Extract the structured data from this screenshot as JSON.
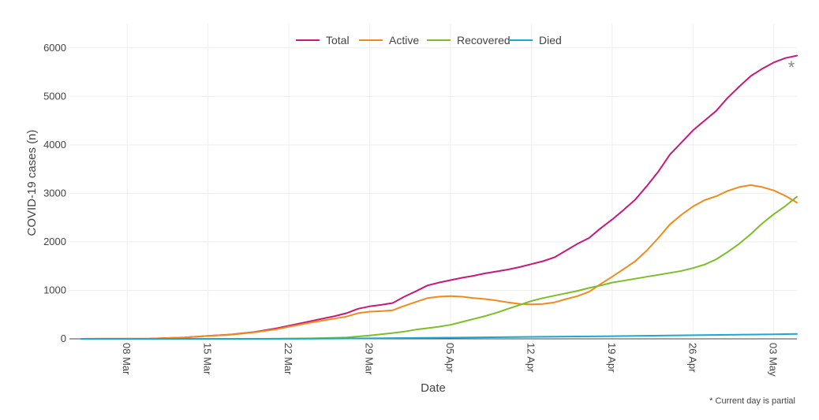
{
  "chart_data": {
    "type": "line",
    "xlabel": "Date",
    "ylabel": "COVID-19 cases (n)",
    "x_start": "2020-03-03",
    "x_end": "2020-05-05",
    "xlim": [
      "2020-03-03",
      "2020-05-05"
    ],
    "ylim": [
      0,
      6500
    ],
    "y_ticks": [
      0,
      1000,
      2000,
      3000,
      4000,
      5000,
      6000
    ],
    "x_ticks": [
      {
        "date": "2020-03-08",
        "label": "08 Mar"
      },
      {
        "date": "2020-03-15",
        "label": "15 Mar"
      },
      {
        "date": "2020-03-22",
        "label": "22 Mar"
      },
      {
        "date": "2020-03-29",
        "label": "29 Mar"
      },
      {
        "date": "2020-04-05",
        "label": "05 Apr"
      },
      {
        "date": "2020-04-12",
        "label": "12 Apr"
      },
      {
        "date": "2020-04-19",
        "label": "19 Apr"
      },
      {
        "date": "2020-04-26",
        "label": "26 Apr"
      },
      {
        "date": "2020-05-03",
        "label": "03 May"
      }
    ],
    "grid": true,
    "legend_position": "top-center",
    "series": [
      {
        "name": "Total",
        "color": "#c7197a",
        "points": [
          [
            "2020-03-04",
            0
          ],
          [
            "2020-03-10",
            5
          ],
          [
            "2020-03-13",
            30
          ],
          [
            "2020-03-15",
            60
          ],
          [
            "2020-03-17",
            90
          ],
          [
            "2020-03-19",
            140
          ],
          [
            "2020-03-21",
            220
          ],
          [
            "2020-03-22",
            270
          ],
          [
            "2020-03-24",
            370
          ],
          [
            "2020-03-26",
            470
          ],
          [
            "2020-03-27",
            530
          ],
          [
            "2020-03-28",
            620
          ],
          [
            "2020-03-29",
            670
          ],
          [
            "2020-03-30",
            700
          ],
          [
            "2020-03-31",
            740
          ],
          [
            "2020-04-01",
            870
          ],
          [
            "2020-04-02",
            980
          ],
          [
            "2020-04-03",
            1100
          ],
          [
            "2020-04-04",
            1160
          ],
          [
            "2020-04-05",
            1210
          ],
          [
            "2020-04-06",
            1260
          ],
          [
            "2020-04-07",
            1300
          ],
          [
            "2020-04-08",
            1350
          ],
          [
            "2020-04-09",
            1390
          ],
          [
            "2020-04-10",
            1430
          ],
          [
            "2020-04-11",
            1480
          ],
          [
            "2020-04-12",
            1540
          ],
          [
            "2020-04-13",
            1600
          ],
          [
            "2020-04-14",
            1680
          ],
          [
            "2020-04-15",
            1820
          ],
          [
            "2020-04-16",
            1960
          ],
          [
            "2020-04-17",
            2080
          ],
          [
            "2020-04-18",
            2280
          ],
          [
            "2020-04-19",
            2460
          ],
          [
            "2020-04-20",
            2660
          ],
          [
            "2020-04-21",
            2870
          ],
          [
            "2020-04-22",
            3150
          ],
          [
            "2020-04-23",
            3450
          ],
          [
            "2020-04-24",
            3800
          ],
          [
            "2020-04-25",
            4050
          ],
          [
            "2020-04-26",
            4300
          ],
          [
            "2020-04-27",
            4500
          ],
          [
            "2020-04-28",
            4700
          ],
          [
            "2020-04-29",
            4970
          ],
          [
            "2020-04-30",
            5200
          ],
          [
            "2020-05-01",
            5420
          ],
          [
            "2020-05-02",
            5570
          ],
          [
            "2020-05-03",
            5700
          ],
          [
            "2020-05-04",
            5790
          ],
          [
            "2020-05-05",
            5840
          ]
        ]
      },
      {
        "name": "Active",
        "color": "#f28a1b",
        "points": [
          [
            "2020-03-04",
            0
          ],
          [
            "2020-03-10",
            5
          ],
          [
            "2020-03-13",
            30
          ],
          [
            "2020-03-15",
            60
          ],
          [
            "2020-03-17",
            85
          ],
          [
            "2020-03-19",
            135
          ],
          [
            "2020-03-21",
            200
          ],
          [
            "2020-03-22",
            250
          ],
          [
            "2020-03-24",
            340
          ],
          [
            "2020-03-26",
            420
          ],
          [
            "2020-03-27",
            460
          ],
          [
            "2020-03-28",
            530
          ],
          [
            "2020-03-29",
            560
          ],
          [
            "2020-03-30",
            570
          ],
          [
            "2020-03-31",
            590
          ],
          [
            "2020-04-01",
            680
          ],
          [
            "2020-04-02",
            760
          ],
          [
            "2020-04-03",
            840
          ],
          [
            "2020-04-04",
            870
          ],
          [
            "2020-04-05",
            880
          ],
          [
            "2020-04-06",
            870
          ],
          [
            "2020-04-07",
            840
          ],
          [
            "2020-04-08",
            820
          ],
          [
            "2020-04-09",
            790
          ],
          [
            "2020-04-10",
            750
          ],
          [
            "2020-04-11",
            720
          ],
          [
            "2020-04-12",
            710
          ],
          [
            "2020-04-13",
            720
          ],
          [
            "2020-04-14",
            750
          ],
          [
            "2020-04-15",
            820
          ],
          [
            "2020-04-16",
            880
          ],
          [
            "2020-04-17",
            970
          ],
          [
            "2020-04-18",
            1130
          ],
          [
            "2020-04-19",
            1280
          ],
          [
            "2020-04-20",
            1440
          ],
          [
            "2020-04-21",
            1600
          ],
          [
            "2020-04-22",
            1820
          ],
          [
            "2020-04-23",
            2080
          ],
          [
            "2020-04-24",
            2360
          ],
          [
            "2020-04-25",
            2560
          ],
          [
            "2020-04-26",
            2730
          ],
          [
            "2020-04-27",
            2860
          ],
          [
            "2020-04-28",
            2940
          ],
          [
            "2020-04-29",
            3050
          ],
          [
            "2020-04-30",
            3130
          ],
          [
            "2020-05-01",
            3170
          ],
          [
            "2020-05-02",
            3130
          ],
          [
            "2020-05-03",
            3060
          ],
          [
            "2020-05-04",
            2950
          ],
          [
            "2020-05-05",
            2810
          ]
        ]
      },
      {
        "name": "Recovered",
        "color": "#7bbf28",
        "points": [
          [
            "2020-03-04",
            0
          ],
          [
            "2020-03-20",
            0
          ],
          [
            "2020-03-24",
            10
          ],
          [
            "2020-03-27",
            30
          ],
          [
            "2020-03-29",
            70
          ],
          [
            "2020-03-31",
            120
          ],
          [
            "2020-04-01",
            150
          ],
          [
            "2020-04-02",
            190
          ],
          [
            "2020-04-03",
            220
          ],
          [
            "2020-04-04",
            250
          ],
          [
            "2020-04-05",
            290
          ],
          [
            "2020-04-06",
            350
          ],
          [
            "2020-04-07",
            410
          ],
          [
            "2020-04-08",
            470
          ],
          [
            "2020-04-09",
            540
          ],
          [
            "2020-04-10",
            620
          ],
          [
            "2020-04-11",
            700
          ],
          [
            "2020-04-12",
            780
          ],
          [
            "2020-04-13",
            840
          ],
          [
            "2020-04-14",
            890
          ],
          [
            "2020-04-15",
            940
          ],
          [
            "2020-04-16",
            990
          ],
          [
            "2020-04-17",
            1050
          ],
          [
            "2020-04-18",
            1100
          ],
          [
            "2020-04-19",
            1160
          ],
          [
            "2020-04-20",
            1200
          ],
          [
            "2020-04-21",
            1240
          ],
          [
            "2020-04-22",
            1280
          ],
          [
            "2020-04-23",
            1320
          ],
          [
            "2020-04-24",
            1360
          ],
          [
            "2020-04-25",
            1400
          ],
          [
            "2020-04-26",
            1460
          ],
          [
            "2020-04-27",
            1530
          ],
          [
            "2020-04-28",
            1640
          ],
          [
            "2020-04-29",
            1790
          ],
          [
            "2020-04-30",
            1960
          ],
          [
            "2020-05-01",
            2160
          ],
          [
            "2020-05-02",
            2380
          ],
          [
            "2020-05-03",
            2570
          ],
          [
            "2020-05-04",
            2740
          ],
          [
            "2020-05-05",
            2930
          ]
        ]
      },
      {
        "name": "Died",
        "color": "#19a8d0",
        "points": [
          [
            "2020-03-04",
            0
          ],
          [
            "2020-03-22",
            2
          ],
          [
            "2020-03-29",
            10
          ],
          [
            "2020-04-05",
            25
          ],
          [
            "2020-04-12",
            40
          ],
          [
            "2020-04-19",
            55
          ],
          [
            "2020-04-26",
            75
          ],
          [
            "2020-05-03",
            95
          ],
          [
            "2020-05-05",
            100
          ]
        ]
      }
    ],
    "annotations": {
      "asterisk": "*",
      "footnote": "* Current day is partial"
    }
  }
}
